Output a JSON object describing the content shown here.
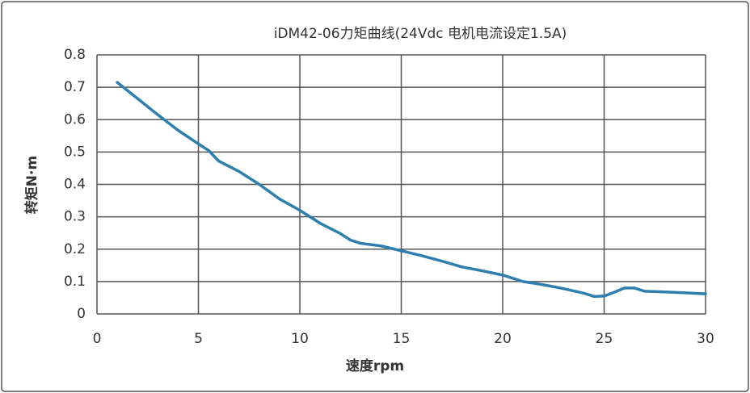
{
  "chart_data": {
    "type": "line",
    "title": "iDM42-06力矩曲线(24Vdc 电机电流设定1.5A)",
    "x_label": "速度rpm",
    "y_label": "转矩N·m",
    "x": [
      1,
      2,
      3,
      4,
      5,
      5.5,
      6,
      7,
      8,
      9,
      10,
      11,
      12,
      12.5,
      13,
      14,
      15,
      16,
      17,
      18,
      19,
      20,
      21,
      22,
      23,
      24,
      24.5,
      25,
      25.5,
      26,
      26.5,
      27,
      28,
      29,
      30
    ],
    "values": [
      0.715,
      0.665,
      0.615,
      0.567,
      0.525,
      0.505,
      0.472,
      0.44,
      0.4,
      0.355,
      0.32,
      0.28,
      0.248,
      0.228,
      0.218,
      0.21,
      0.195,
      0.18,
      0.163,
      0.145,
      0.133,
      0.12,
      0.1,
      0.09,
      0.078,
      0.064,
      0.054,
      0.055,
      0.067,
      0.08,
      0.08,
      0.07,
      0.068,
      0.065,
      0.062
    ],
    "color": "#2f7fae",
    "xlim": [
      0,
      30
    ],
    "xticks": [
      0,
      5,
      10,
      15,
      20,
      25,
      30
    ],
    "ylim": [
      0,
      0.8
    ],
    "yticks": [
      0,
      0.1,
      0.2,
      0.3,
      0.4,
      0.5,
      0.6,
      0.7,
      0.8
    ],
    "grid": true
  }
}
